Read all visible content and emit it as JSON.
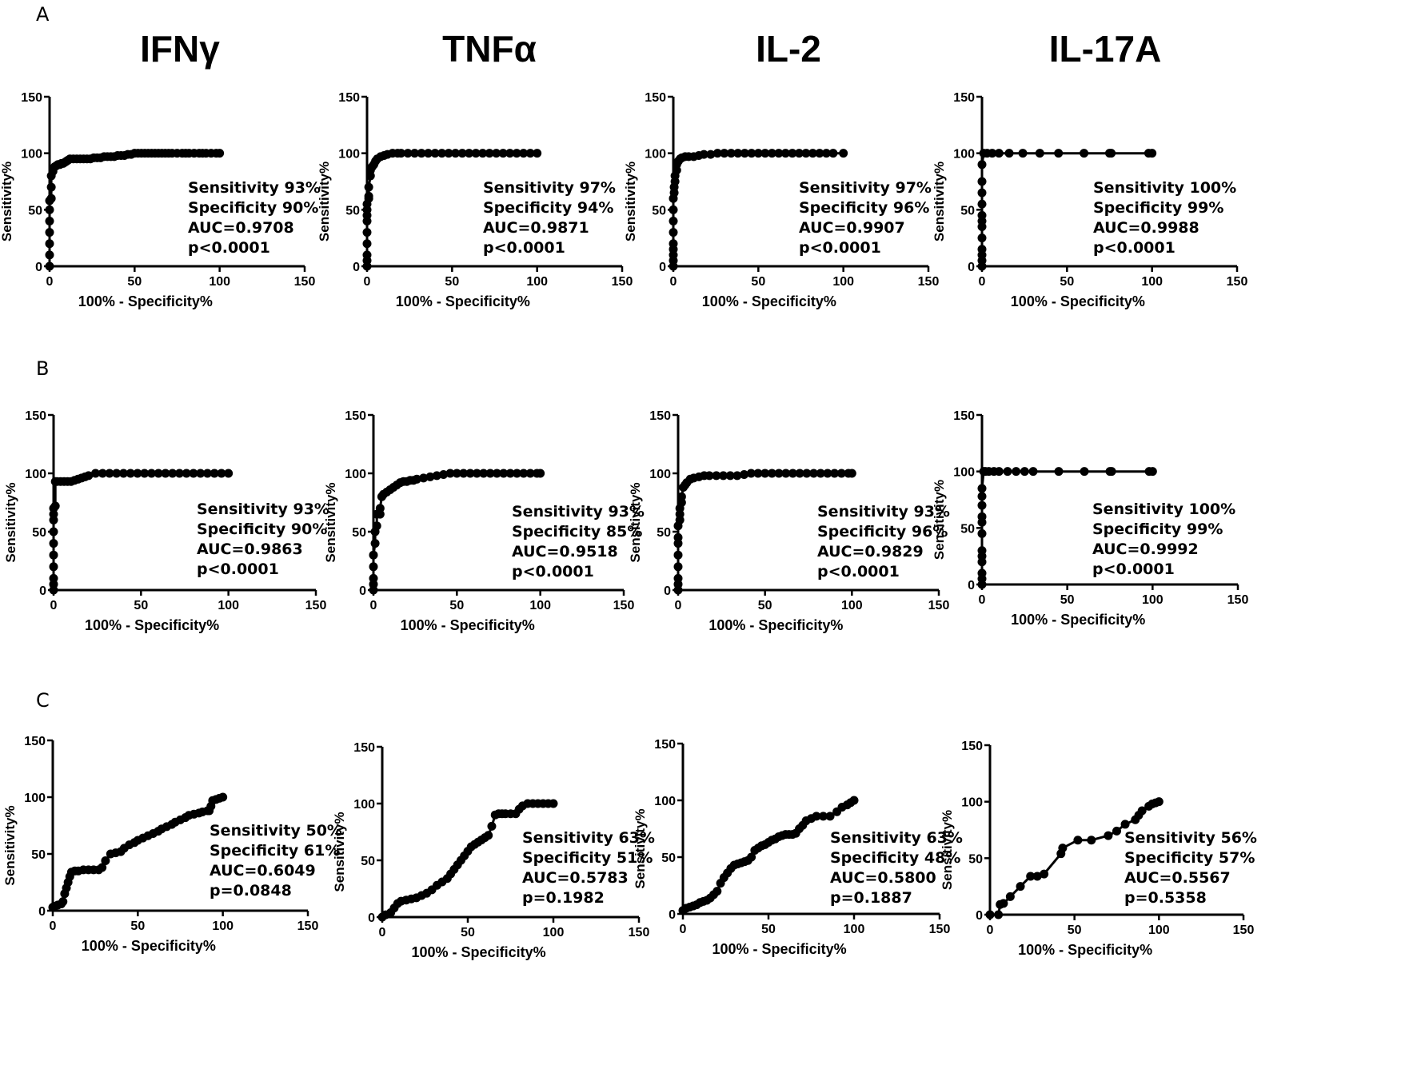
{
  "panels": [
    {
      "label": "A"
    },
    {
      "label": "B"
    },
    {
      "label": "C"
    }
  ],
  "columns": [
    "IFNγ",
    "TNFα",
    "IL-2",
    "IL-17A"
  ],
  "chart_data": [
    {
      "type": "line",
      "panel": "A",
      "title": "IFNγ",
      "xlabel": "100% - Specificity%",
      "ylabel": "Sensitivity%",
      "xlim": [
        0,
        150
      ],
      "ylim": [
        0,
        150
      ],
      "xticks": [
        "0",
        "50",
        "100",
        "150"
      ],
      "yticks": [
        "0",
        "50",
        "100",
        "150"
      ],
      "x": [
        0,
        0,
        0,
        0,
        0,
        0,
        0,
        1,
        1,
        1,
        2,
        2,
        3,
        4,
        5,
        6,
        7,
        8,
        9,
        10,
        11,
        12,
        14,
        16,
        18,
        20,
        22,
        24,
        26,
        28,
        30,
        32,
        34,
        36,
        38,
        40,
        42,
        44,
        46,
        48,
        50,
        52,
        54,
        56,
        58,
        60,
        62,
        64,
        66,
        68,
        70,
        72,
        75,
        78,
        80,
        82,
        85,
        88,
        90,
        92,
        95,
        98,
        100
      ],
      "y": [
        0,
        10,
        20,
        30,
        40,
        50,
        58,
        60,
        70,
        80,
        84,
        86,
        88,
        89,
        90,
        90,
        91,
        91,
        92,
        93,
        94,
        95,
        95,
        95,
        95,
        95,
        95,
        95,
        96,
        96,
        96,
        97,
        97,
        97,
        97,
        98,
        98,
        98,
        99,
        99,
        100,
        100,
        100,
        100,
        100,
        100,
        100,
        100,
        100,
        100,
        100,
        100,
        100,
        100,
        100,
        100,
        100,
        100,
        100,
        100,
        100,
        100,
        100
      ],
      "annotations": [
        "Sensitivity 93%",
        "Specificity 90%",
        "AUC=0.9708",
        "p<0.0001"
      ]
    },
    {
      "type": "line",
      "panel": "A",
      "title": "TNFα",
      "xlabel": "100% - Specificity%",
      "ylabel": "Sensitivity%",
      "xlim": [
        0,
        150
      ],
      "ylim": [
        0,
        150
      ],
      "xticks": [
        "0",
        "50",
        "100",
        "150"
      ],
      "yticks": [
        "0",
        "50",
        "100",
        "150"
      ],
      "x": [
        0,
        0,
        0,
        0,
        0,
        0,
        0,
        0,
        0,
        1,
        1,
        1,
        2,
        2,
        3,
        4,
        5,
        6,
        8,
        10,
        12,
        15,
        18,
        20,
        24,
        28,
        32,
        36,
        40,
        44,
        48,
        52,
        56,
        60,
        64,
        68,
        72,
        76,
        80,
        84,
        88,
        92,
        96,
        100
      ],
      "y": [
        0,
        5,
        10,
        20,
        30,
        40,
        45,
        50,
        55,
        60,
        62,
        70,
        80,
        85,
        88,
        90,
        93,
        95,
        97,
        98,
        99,
        100,
        100,
        100,
        100,
        100,
        100,
        100,
        100,
        100,
        100,
        100,
        100,
        100,
        100,
        100,
        100,
        100,
        100,
        100,
        100,
        100,
        100,
        100
      ],
      "annotations": [
        "Sensitivity 97%",
        "Specificity 94%",
        "AUC=0.9871",
        "p<0.0001"
      ]
    },
    {
      "type": "line",
      "panel": "A",
      "title": "IL-2",
      "xlabel": "100% - Specificity%",
      "ylabel": "Sensitivity%",
      "xlim": [
        0,
        150
      ],
      "ylim": [
        0,
        150
      ],
      "xticks": [
        "0",
        "50",
        "100",
        "150"
      ],
      "yticks": [
        "0",
        "50",
        "100",
        "150"
      ],
      "x": [
        0,
        0,
        0,
        0,
        0,
        0,
        0,
        0,
        0,
        0.5,
        0.5,
        1,
        1,
        2,
        2,
        3,
        4,
        5,
        7,
        9,
        12,
        15,
        18,
        22,
        26,
        30,
        34,
        38,
        42,
        46,
        50,
        54,
        58,
        62,
        66,
        70,
        74,
        78,
        82,
        86,
        90,
        94,
        100
      ],
      "y": [
        0,
        5,
        10,
        15,
        20,
        30,
        40,
        50,
        60,
        65,
        70,
        75,
        80,
        85,
        90,
        93,
        95,
        96,
        97,
        97,
        97,
        98,
        99,
        99,
        100,
        100,
        100,
        100,
        100,
        100,
        100,
        100,
        100,
        100,
        100,
        100,
        100,
        100,
        100,
        100,
        100,
        100,
        100
      ],
      "annotations": [
        "Sensitivity 97%",
        "Specificity 96%",
        "AUC=0.9907",
        "p<0.0001"
      ]
    },
    {
      "type": "line",
      "panel": "A",
      "title": "IL-17A",
      "xlabel": "100% - Specificity%",
      "ylabel": "Sensitivity%",
      "xlim": [
        0,
        150
      ],
      "ylim": [
        0,
        150
      ],
      "xticks": [
        "0",
        "50",
        "100",
        "150"
      ],
      "yticks": [
        "0",
        "50",
        "100",
        "150"
      ],
      "x": [
        0,
        0,
        0,
        0,
        0,
        0,
        0,
        0,
        0,
        0,
        0,
        0,
        1,
        3,
        6,
        10,
        16,
        24,
        34,
        45,
        60,
        75,
        76,
        98,
        100
      ],
      "y": [
        0,
        5,
        10,
        15,
        25,
        35,
        40,
        45,
        55,
        65,
        75,
        90,
        100,
        100,
        100,
        100,
        100,
        100,
        100,
        100,
        100,
        100,
        100,
        100,
        100
      ],
      "annotations": [
        "Sensitivity 100%",
        "Specificity 99%",
        "AUC=0.9988",
        "p<0.0001"
      ]
    },
    {
      "type": "line",
      "panel": "B",
      "title": "IFNγ",
      "xlabel": "100% - Specificity%",
      "ylabel": "Sensitivity%",
      "xlim": [
        0,
        150
      ],
      "ylim": [
        0,
        150
      ],
      "xticks": [
        "0",
        "50",
        "100",
        "150"
      ],
      "yticks": [
        "0",
        "50",
        "100",
        "150"
      ],
      "x": [
        0,
        0,
        0,
        0,
        0,
        0,
        0,
        0,
        0,
        0,
        1,
        1,
        2,
        4,
        6,
        8,
        10,
        12,
        14,
        16,
        18,
        20,
        24,
        28,
        32,
        36,
        40,
        44,
        48,
        52,
        56,
        60,
        64,
        68,
        72,
        76,
        80,
        84,
        88,
        92,
        96,
        100
      ],
      "y": [
        0,
        5,
        10,
        20,
        30,
        40,
        50,
        60,
        65,
        70,
        72,
        93,
        93,
        93,
        93,
        93,
        93,
        94,
        95,
        96,
        97,
        98,
        100,
        100,
        100,
        100,
        100,
        100,
        100,
        100,
        100,
        100,
        100,
        100,
        100,
        100,
        100,
        100,
        100,
        100,
        100,
        100
      ],
      "annotations": [
        "Sensitivity 93%",
        "Specificity 90%",
        "AUC=0.9863",
        "p<0.0001"
      ]
    },
    {
      "type": "line",
      "panel": "B",
      "title": "TNFα",
      "xlabel": "100% - Specificity%",
      "ylabel": "Sensitivity%",
      "xlim": [
        0,
        150
      ],
      "ylim": [
        0,
        150
      ],
      "xticks": [
        "0",
        "50",
        "100",
        "150"
      ],
      "yticks": [
        "0",
        "50",
        "100",
        "150"
      ],
      "x": [
        0,
        0,
        0,
        0,
        0,
        1,
        1,
        2,
        2,
        4,
        4,
        5,
        6,
        8,
        10,
        12,
        14,
        16,
        18,
        20,
        22,
        24,
        26,
        30,
        34,
        38,
        42,
        46,
        50,
        54,
        58,
        62,
        66,
        70,
        74,
        78,
        82,
        86,
        90,
        94,
        98,
        100
      ],
      "y": [
        0,
        5,
        10,
        20,
        30,
        40,
        50,
        55,
        65,
        65,
        70,
        80,
        82,
        84,
        86,
        88,
        90,
        92,
        93,
        93,
        94,
        94,
        95,
        96,
        97,
        98,
        99,
        100,
        100,
        100,
        100,
        100,
        100,
        100,
        100,
        100,
        100,
        100,
        100,
        100,
        100,
        100
      ],
      "annotations": [
        "Sensitivity 93%",
        "Specificity 85%",
        "AUC=0.9518",
        "p<0.0001"
      ]
    },
    {
      "type": "line",
      "panel": "B",
      "title": "IL-2",
      "xlabel": "100% - Specificity%",
      "ylabel": "Sensitivity%",
      "xlim": [
        0,
        150
      ],
      "ylim": [
        0,
        150
      ],
      "xticks": [
        "0",
        "50",
        "100",
        "150"
      ],
      "yticks": [
        "0",
        "50",
        "100",
        "150"
      ],
      "x": [
        0,
        0,
        0,
        0,
        0,
        0,
        0,
        0,
        1,
        1,
        1,
        2,
        2,
        3,
        4,
        5,
        7,
        9,
        12,
        15,
        18,
        22,
        26,
        30,
        34,
        38,
        42,
        46,
        50,
        54,
        58,
        62,
        66,
        70,
        74,
        78,
        82,
        86,
        90,
        94,
        98,
        100
      ],
      "y": [
        0,
        5,
        10,
        20,
        30,
        40,
        45,
        55,
        60,
        65,
        70,
        75,
        80,
        88,
        90,
        92,
        95,
        96,
        97,
        98,
        98,
        98,
        98,
        98,
        98,
        99,
        100,
        100,
        100,
        100,
        100,
        100,
        100,
        100,
        100,
        100,
        100,
        100,
        100,
        100,
        100,
        100
      ],
      "annotations": [
        "Sensitivity 93%",
        "Specificity 96%",
        "AUC=0.9829",
        "p<0.0001"
      ]
    },
    {
      "type": "line",
      "panel": "B",
      "title": "IL-17A",
      "xlabel": "100% - Specificity%",
      "ylabel": "Sensitivity%",
      "xlim": [
        0,
        150
      ],
      "ylim": [
        0,
        150
      ],
      "xticks": [
        "0",
        "50",
        "100",
        "150"
      ],
      "yticks": [
        "0",
        "50",
        "100",
        "150"
      ],
      "x": [
        0,
        0,
        0,
        0,
        0,
        0,
        0,
        0,
        0,
        0,
        0,
        0,
        1,
        2,
        4,
        7,
        10,
        15,
        20,
        25,
        30,
        45,
        60,
        75,
        76,
        98,
        100
      ],
      "y": [
        0,
        5,
        10,
        20,
        25,
        30,
        45,
        55,
        60,
        70,
        78,
        85,
        100,
        100,
        100,
        100,
        100,
        100,
        100,
        100,
        100,
        100,
        100,
        100,
        100,
        100,
        100
      ],
      "annotations": [
        "Sensitivity 100%",
        "Specificity 99%",
        "AUC=0.9992",
        "p<0.0001"
      ]
    },
    {
      "type": "line",
      "panel": "C",
      "title": "IFNγ",
      "xlabel": "100% - Specificity%",
      "ylabel": "Sensitivity%",
      "xlim": [
        0,
        150
      ],
      "ylim": [
        0,
        150
      ],
      "xticks": [
        "0",
        "50",
        "100",
        "150"
      ],
      "yticks": [
        "0",
        "50",
        "100",
        "150"
      ],
      "x": [
        0,
        1,
        3,
        5,
        6,
        7,
        8,
        9,
        10,
        11,
        13,
        15,
        18,
        21,
        24,
        27,
        29,
        31,
        34,
        37,
        40,
        42,
        45,
        48,
        50,
        53,
        56,
        59,
        62,
        64,
        67,
        70,
        72,
        75,
        78,
        80,
        83,
        86,
        88,
        91,
        92,
        93,
        94,
        96,
        98,
        100
      ],
      "y": [
        3,
        4,
        5,
        6,
        8,
        15,
        20,
        25,
        30,
        34,
        35,
        35,
        36,
        36,
        36,
        36,
        38,
        44,
        50,
        51,
        52,
        55,
        58,
        60,
        62,
        64,
        66,
        68,
        70,
        72,
        74,
        76,
        78,
        80,
        82,
        84,
        85,
        86,
        87,
        88,
        88,
        92,
        97,
        98,
        99,
        100
      ],
      "annotations": [
        "Sensitivity 50%",
        "Specificity 61%",
        "AUC=0.6049",
        "p=0.0848"
      ]
    },
    {
      "type": "line",
      "panel": "C",
      "title": "TNFα",
      "xlabel": "100% - Specificity%",
      "ylabel": "Sensitivity%",
      "xlim": [
        0,
        150
      ],
      "ylim": [
        0,
        150
      ],
      "xticks": [
        "0",
        "50",
        "100",
        "150"
      ],
      "yticks": [
        "0",
        "50",
        "100",
        "150"
      ],
      "x": [
        0,
        2,
        5,
        7,
        9,
        11,
        14,
        17,
        20,
        23,
        26,
        29,
        32,
        35,
        38,
        40,
        42,
        44,
        46,
        48,
        50,
        52,
        54,
        56,
        58,
        60,
        62,
        64,
        66,
        68,
        70,
        72,
        75,
        78,
        80,
        82,
        85,
        88,
        91,
        94,
        97,
        100
      ],
      "y": [
        0,
        2,
        4,
        8,
        12,
        14,
        15,
        16,
        17,
        19,
        21,
        24,
        28,
        31,
        34,
        38,
        42,
        46,
        50,
        54,
        58,
        62,
        64,
        66,
        68,
        70,
        72,
        80,
        90,
        91,
        91,
        91,
        91,
        91,
        95,
        98,
        100,
        100,
        100,
        100,
        100,
        100
      ],
      "annotations": [
        "Sensitivity 63%",
        "Specificity 51%",
        "AUC=0.5783",
        "p=0.1982"
      ]
    },
    {
      "type": "line",
      "panel": "C",
      "title": "IL-2",
      "xlabel": "100% - Specificity%",
      "ylabel": "Sensitivity%",
      "xlim": [
        0,
        150
      ],
      "ylim": [
        0,
        150
      ],
      "xticks": [
        "0",
        "50",
        "100",
        "150"
      ],
      "yticks": [
        "0",
        "50",
        "100",
        "150"
      ],
      "x": [
        0,
        2,
        4,
        6,
        8,
        10,
        12,
        14,
        16,
        18,
        20,
        22,
        24,
        26,
        28,
        30,
        32,
        34,
        36,
        38,
        40,
        42,
        44,
        46,
        48,
        50,
        52,
        54,
        56,
        58,
        60,
        62,
        64,
        66,
        68,
        70,
        72,
        75,
        78,
        82,
        86,
        90,
        93,
        96,
        98,
        100
      ],
      "y": [
        3,
        5,
        6,
        7,
        8,
        10,
        11,
        12,
        14,
        17,
        20,
        27,
        32,
        36,
        40,
        43,
        44,
        45,
        46,
        47,
        50,
        56,
        58,
        60,
        61,
        63,
        65,
        66,
        68,
        69,
        70,
        70,
        70,
        71,
        75,
        78,
        82,
        84,
        86,
        86,
        86,
        90,
        94,
        96,
        98,
        100
      ],
      "annotations": [
        "Sensitivity 63%",
        "Specificity 48%",
        "AUC=0.5800",
        "p=0.1887"
      ]
    },
    {
      "type": "line",
      "panel": "C",
      "title": "IL-17A",
      "xlabel": "100% - Specificity%",
      "ylabel": "Sensitivity%",
      "xlim": [
        0,
        150
      ],
      "ylim": [
        0,
        150
      ],
      "xticks": [
        "0",
        "50",
        "100",
        "150"
      ],
      "yticks": [
        "0",
        "50",
        "100",
        "150"
      ],
      "x": [
        0,
        5,
        6,
        8,
        12,
        18,
        24,
        28,
        32,
        42,
        43,
        52,
        60,
        70,
        75,
        80,
        86,
        88,
        90,
        94,
        96,
        98,
        100
      ],
      "y": [
        0,
        0,
        9,
        10,
        16,
        25,
        34,
        34,
        36,
        54,
        59,
        66,
        66,
        70,
        74,
        80,
        84,
        88,
        92,
        96,
        98,
        99,
        100
      ],
      "annotations": [
        "Sensitivity 56%",
        "Specificity 57%",
        "AUC=0.5567",
        "p=0.5358"
      ]
    }
  ]
}
